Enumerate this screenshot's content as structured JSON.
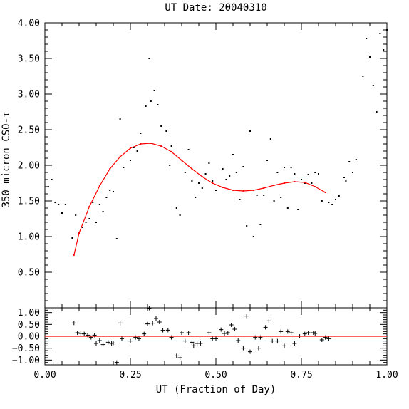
{
  "chart_data": [
    {
      "type": "scatter",
      "title": "UT Date: 20040310",
      "xlabel": "",
      "ylabel": "350 micron CSO-τ",
      "xlim": [
        0,
        1
      ],
      "ylim": [
        0,
        4
      ],
      "ytick_labels": [
        "0.50",
        "1.00",
        "1.50",
        "2.00",
        "2.50",
        "3.00",
        "3.50",
        "4.00"
      ],
      "x_tick_labels_shown": false,
      "series": [
        {
          "marker": "dot",
          "color": "#000000",
          "points": [
            [
              0.01,
              1.7
            ],
            [
              0.02,
              1.8
            ],
            [
              0.03,
              1.48
            ],
            [
              0.04,
              1.45
            ],
            [
              0.05,
              1.33
            ],
            [
              0.06,
              1.45
            ],
            [
              0.08,
              0.98
            ],
            [
              0.09,
              1.3
            ],
            [
              0.1,
              1.05
            ],
            [
              0.11,
              1.13
            ],
            [
              0.12,
              1.2
            ],
            [
              0.13,
              1.25
            ],
            [
              0.14,
              1.48
            ],
            [
              0.15,
              1.2
            ],
            [
              0.16,
              1.45
            ],
            [
              0.17,
              1.35
            ],
            [
              0.18,
              1.55
            ],
            [
              0.19,
              1.65
            ],
            [
              0.2,
              1.63
            ],
            [
              0.21,
              0.97
            ],
            [
              0.22,
              2.65
            ],
            [
              0.23,
              1.97
            ],
            [
              0.25,
              2.07
            ],
            [
              0.26,
              2.25
            ],
            [
              0.27,
              2.2
            ],
            [
              0.28,
              2.45
            ],
            [
              0.295,
              2.83
            ],
            [
              0.305,
              3.5
            ],
            [
              0.31,
              2.9
            ],
            [
              0.32,
              3.05
            ],
            [
              0.33,
              2.85
            ],
            [
              0.34,
              2.55
            ],
            [
              0.355,
              2.48
            ],
            [
              0.365,
              2.0
            ],
            [
              0.37,
              2.27
            ],
            [
              0.385,
              1.4
            ],
            [
              0.395,
              1.3
            ],
            [
              0.41,
              1.9
            ],
            [
              0.42,
              2.22
            ],
            [
              0.43,
              1.78
            ],
            [
              0.44,
              1.55
            ],
            [
              0.45,
              1.75
            ],
            [
              0.46,
              1.68
            ],
            [
              0.47,
              1.88
            ],
            [
              0.48,
              2.03
            ],
            [
              0.49,
              1.78
            ],
            [
              0.5,
              1.65
            ],
            [
              0.52,
              1.95
            ],
            [
              0.53,
              1.8
            ],
            [
              0.54,
              1.85
            ],
            [
              0.55,
              2.15
            ],
            [
              0.56,
              1.9
            ],
            [
              0.57,
              1.52
            ],
            [
              0.58,
              1.98
            ],
            [
              0.59,
              1.15
            ],
            [
              0.6,
              2.48
            ],
            [
              0.61,
              1.0
            ],
            [
              0.62,
              1.58
            ],
            [
              0.63,
              1.17
            ],
            [
              0.64,
              1.58
            ],
            [
              0.65,
              2.07
            ],
            [
              0.66,
              2.37
            ],
            [
              0.67,
              1.5
            ],
            [
              0.68,
              1.9
            ],
            [
              0.69,
              1.55
            ],
            [
              0.7,
              1.97
            ],
            [
              0.71,
              1.4
            ],
            [
              0.72,
              1.97
            ],
            [
              0.73,
              1.88
            ],
            [
              0.74,
              1.38
            ],
            [
              0.75,
              1.8
            ],
            [
              0.76,
              1.75
            ],
            [
              0.77,
              1.87
            ],
            [
              0.78,
              1.75
            ],
            [
              0.79,
              1.9
            ],
            [
              0.8,
              1.88
            ],
            [
              0.81,
              1.5
            ],
            [
              0.82,
              1.62
            ],
            [
              0.83,
              1.48
            ],
            [
              0.84,
              1.45
            ],
            [
              0.85,
              1.52
            ],
            [
              0.86,
              1.57
            ],
            [
              0.875,
              1.83
            ],
            [
              0.88,
              1.78
            ],
            [
              0.89,
              2.05
            ],
            [
              0.9,
              1.9
            ],
            [
              0.91,
              2.08
            ],
            [
              0.93,
              3.25
            ],
            [
              0.94,
              3.78
            ],
            [
              0.95,
              3.52
            ],
            [
              0.96,
              3.12
            ],
            [
              0.97,
              2.75
            ],
            [
              0.98,
              3.85
            ],
            [
              0.99,
              3.62
            ],
            [
              1.0,
              3.9
            ]
          ]
        },
        {
          "type": "line",
          "color": "#ff0000",
          "x": [
            0.085,
            0.1,
            0.13,
            0.16,
            0.19,
            0.22,
            0.25,
            0.28,
            0.31,
            0.34,
            0.37,
            0.4,
            0.43,
            0.46,
            0.49,
            0.52,
            0.55,
            0.58,
            0.61,
            0.64,
            0.67,
            0.7,
            0.73,
            0.76,
            0.79,
            0.82
          ],
          "y": [
            0.74,
            1.05,
            1.42,
            1.71,
            1.95,
            2.12,
            2.24,
            2.3,
            2.31,
            2.27,
            2.19,
            2.07,
            1.95,
            1.84,
            1.75,
            1.69,
            1.65,
            1.64,
            1.65,
            1.68,
            1.72,
            1.75,
            1.77,
            1.76,
            1.7,
            1.62
          ]
        }
      ]
    },
    {
      "type": "scatter",
      "title": "",
      "xlabel": "UT (Fraction of Day)",
      "ylabel": "",
      "xlim": [
        0,
        1
      ],
      "ylim": [
        -1.2,
        1.2
      ],
      "xtick_labels": [
        "0.00",
        "0.25",
        "0.50",
        "0.75",
        "1.00"
      ],
      "ytick_labels": [
        "−1.00",
        "−0.50",
        "0.00",
        "0.50",
        "1.00"
      ],
      "series": [
        {
          "marker": "plus",
          "color": "#000000",
          "points": [
            [
              0.085,
              0.56
            ],
            [
              0.095,
              0.15
            ],
            [
              0.105,
              0.12
            ],
            [
              0.115,
              0.1
            ],
            [
              0.125,
              0.05
            ],
            [
              0.135,
              -0.05
            ],
            [
              0.145,
              0.05
            ],
            [
              0.15,
              -0.3
            ],
            [
              0.16,
              -0.18
            ],
            [
              0.17,
              -0.35
            ],
            [
              0.185,
              -0.25
            ],
            [
              0.195,
              -0.3
            ],
            [
              0.2,
              -0.28
            ],
            [
              0.21,
              -1.1
            ],
            [
              0.22,
              0.56
            ],
            [
              0.225,
              -0.1
            ],
            [
              0.25,
              -0.2
            ],
            [
              0.265,
              -0.05
            ],
            [
              0.275,
              -0.1
            ],
            [
              0.29,
              0.1
            ],
            [
              0.3,
              0.52
            ],
            [
              0.305,
              1.18
            ],
            [
              0.315,
              0.55
            ],
            [
              0.325,
              0.75
            ],
            [
              0.335,
              0.6
            ],
            [
              0.345,
              0.25
            ],
            [
              0.36,
              0.26
            ],
            [
              0.37,
              -0.05
            ],
            [
              0.385,
              -0.82
            ],
            [
              0.395,
              -0.9
            ],
            [
              0.4,
              0.15
            ],
            [
              0.41,
              -0.2
            ],
            [
              0.42,
              0.15
            ],
            [
              0.43,
              -0.25
            ],
            [
              0.435,
              -0.4
            ],
            [
              0.445,
              -0.3
            ],
            [
              0.455,
              -0.3
            ],
            [
              0.48,
              0.15
            ],
            [
              0.49,
              -0.1
            ],
            [
              0.5,
              -0.1
            ],
            [
              0.515,
              0.28
            ],
            [
              0.525,
              0.12
            ],
            [
              0.535,
              0.15
            ],
            [
              0.545,
              0.48
            ],
            [
              0.555,
              0.3
            ],
            [
              0.565,
              -0.18
            ],
            [
              0.58,
              -0.5
            ],
            [
              0.59,
              0.85
            ],
            [
              0.6,
              -0.65
            ],
            [
              0.615,
              -0.05
            ],
            [
              0.625,
              -0.5
            ],
            [
              0.63,
              -0.05
            ],
            [
              0.645,
              0.38
            ],
            [
              0.655,
              0.65
            ],
            [
              0.665,
              -0.2
            ],
            [
              0.68,
              -0.2
            ],
            [
              0.69,
              0.2
            ],
            [
              0.7,
              -0.4
            ],
            [
              0.71,
              0.2
            ],
            [
              0.72,
              0.15
            ],
            [
              0.73,
              -0.3
            ],
            [
              0.745,
              0.0
            ],
            [
              0.76,
              0.1
            ],
            [
              0.77,
              0.15
            ],
            [
              0.785,
              0.15
            ],
            [
              0.79,
              0.12
            ],
            [
              0.81,
              -0.15
            ],
            [
              0.82,
              -0.05
            ],
            [
              0.83,
              -0.1
            ]
          ]
        },
        {
          "type": "line",
          "color": "#ff0000",
          "x": [
            0,
            1
          ],
          "y": [
            0,
            0
          ]
        }
      ]
    }
  ]
}
